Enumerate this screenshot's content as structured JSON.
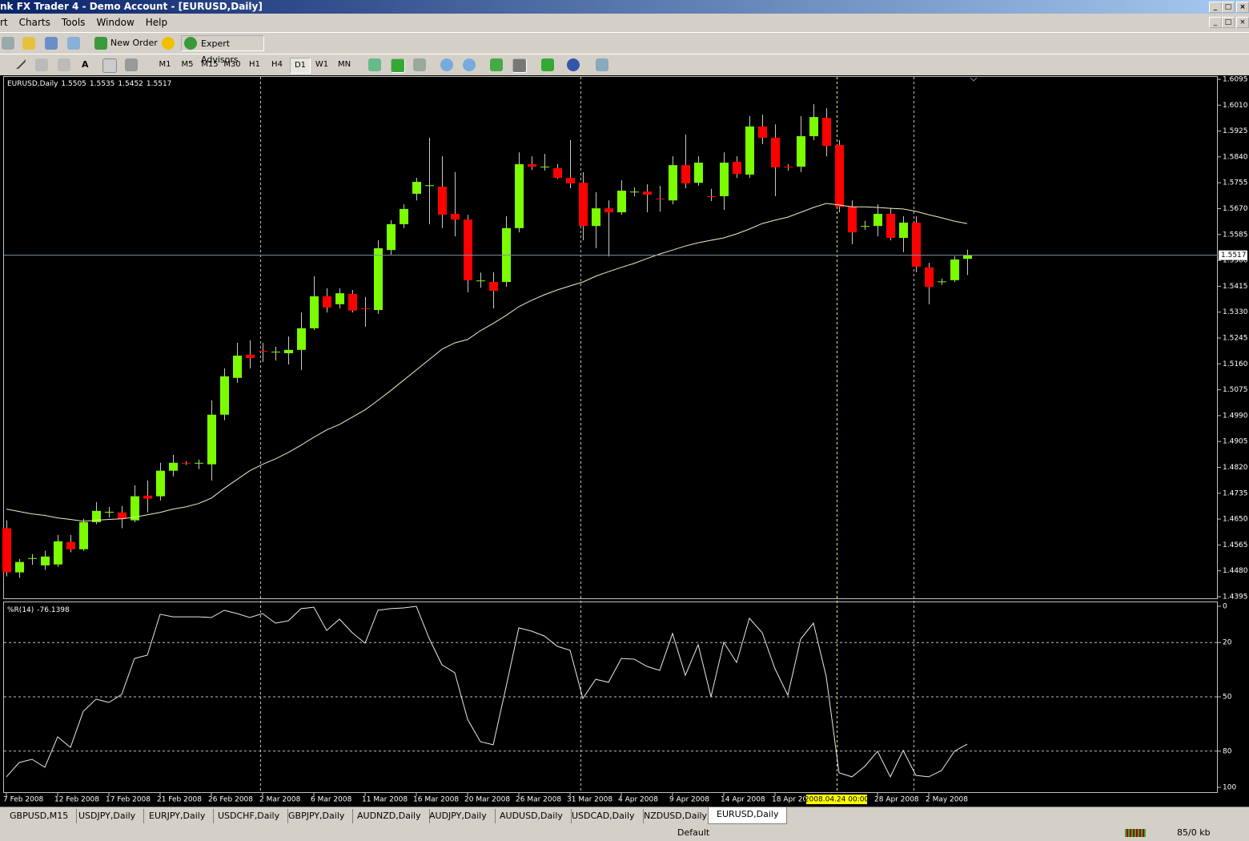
{
  "window": {
    "title": "nk FX Trader 4 - Demo Account - [EURUSD,Daily]"
  },
  "menu": [
    "rt",
    "Charts",
    "Tools",
    "Window",
    "Help"
  ],
  "toolbar": {
    "new_order": "New Order",
    "expert_advisors": "Expert Advisors",
    "timeframes": [
      "M1",
      "M5",
      "M15",
      "M30",
      "H1",
      "H4",
      "D1",
      "W1",
      "MN"
    ],
    "active_timeframe": "D1"
  },
  "tabs": [
    "GBPUSD,M15",
    "USDJPY,Daily",
    "EURJPY,Daily",
    "USDCHF,Daily",
    "GBPJPY,Daily",
    "AUDNZD,Daily",
    "AUDJPY,Daily",
    "AUDUSD,Daily",
    "USDCAD,Daily",
    "NZDUSD,Daily",
    "EURUSD,Daily"
  ],
  "active_tab": "EURUSD,Daily",
  "status": {
    "profile": "Default",
    "traffic": "85/0 kb"
  },
  "chart_data": [
    {
      "type": "candlestick",
      "title": "EURUSD,Daily",
      "cursor_label": "2008.04.24 00:00",
      "up_color": "#7cfc00",
      "down_color": "#ff0000",
      "wick_color": "#c8c8c8",
      "ma_color": "#f0ecc8",
      "open": [
        1.462,
        1.4475,
        1.452,
        1.4498,
        1.4501,
        1.4575,
        1.4551,
        1.464,
        1.4672,
        1.4672,
        1.4646,
        1.4727,
        1.4725,
        1.4809,
        1.4835,
        1.4833,
        1.483,
        1.4993,
        1.5114,
        1.519,
        1.5203,
        1.5198,
        1.5195,
        1.5206,
        1.5277,
        1.5382,
        1.5356,
        1.539,
        1.5343,
        1.5337,
        1.5534,
        1.5619,
        1.5719,
        1.5745,
        1.5742,
        1.5653,
        1.5634,
        1.5432,
        1.5429,
        1.5429,
        1.5606,
        1.5816,
        1.5806,
        1.5803,
        1.5771,
        1.5755,
        1.5613,
        1.5671,
        1.5658,
        1.5724,
        1.5726,
        1.5703,
        1.5697,
        1.5813,
        1.5755,
        1.5711,
        1.5711,
        1.5824,
        1.5782,
        1.594,
        1.5903,
        1.5808,
        1.5808,
        1.5908,
        1.5968,
        1.5879,
        1.5676,
        1.5611,
        1.5613,
        1.5653,
        1.5574,
        1.5624,
        1.5477,
        1.5429,
        1.5435,
        1.5505
      ],
      "high": [
        1.4646,
        1.4519,
        1.4535,
        1.4546,
        1.4598,
        1.4598,
        1.4651,
        1.4706,
        1.469,
        1.4693,
        1.4761,
        1.4777,
        1.4835,
        1.4861,
        1.484,
        1.4846,
        1.504,
        1.5145,
        1.5229,
        1.5237,
        1.5229,
        1.5216,
        1.525,
        1.5329,
        1.5448,
        1.5408,
        1.5408,
        1.5403,
        1.538,
        1.5566,
        1.5632,
        1.5684,
        1.5771,
        1.5903,
        1.5842,
        1.579,
        1.565,
        1.546,
        1.5461,
        1.5645,
        1.5855,
        1.5842,
        1.585,
        1.5816,
        1.5895,
        1.579,
        1.5724,
        1.5697,
        1.5763,
        1.574,
        1.575,
        1.5745,
        1.5842,
        1.5913,
        1.5842,
        1.5735,
        1.5855,
        1.5842,
        1.5974,
        1.5979,
        1.5947,
        1.5816,
        1.5974,
        1.6013,
        1.6,
        1.5895,
        1.5697,
        1.563,
        1.5684,
        1.5671,
        1.5645,
        1.5645,
        1.5492,
        1.544,
        1.5514,
        1.5535
      ],
      "low": [
        1.4462,
        1.4457,
        1.45,
        1.4483,
        1.4493,
        1.4541,
        1.4546,
        1.4633,
        1.4655,
        1.462,
        1.464,
        1.4672,
        1.4711,
        1.479,
        1.4828,
        1.4814,
        1.4777,
        1.4975,
        1.5098,
        1.5145,
        1.5166,
        1.5171,
        1.5158,
        1.514,
        1.5271,
        1.5329,
        1.5342,
        1.5329,
        1.5282,
        1.5324,
        1.5519,
        1.5606,
        1.5697,
        1.5619,
        1.5606,
        1.5579,
        1.5395,
        1.541,
        1.5342,
        1.5413,
        1.5592,
        1.5797,
        1.5795,
        1.5768,
        1.5737,
        1.5566,
        1.554,
        1.5513,
        1.565,
        1.571,
        1.5658,
        1.566,
        1.5684,
        1.5737,
        1.5745,
        1.5695,
        1.5666,
        1.5771,
        1.5771,
        1.5882,
        1.5711,
        1.5795,
        1.579,
        1.5895,
        1.5842,
        1.5658,
        1.5553,
        1.56,
        1.5579,
        1.5566,
        1.5527,
        1.5461,
        1.5356,
        1.542,
        1.5429,
        1.5452
      ],
      "close": [
        1.4475,
        1.4509,
        1.4522,
        1.4527,
        1.4577,
        1.4551,
        1.464,
        1.4677,
        1.4674,
        1.4651,
        1.4725,
        1.4717,
        1.4809,
        1.4835,
        1.4833,
        1.4835,
        1.4993,
        1.5119,
        1.5187,
        1.5179,
        1.5201,
        1.52,
        1.5206,
        1.5277,
        1.5382,
        1.5345,
        1.5392,
        1.5335,
        1.5341,
        1.554,
        1.5619,
        1.5669,
        1.5758,
        1.5747,
        1.565,
        1.5634,
        1.5435,
        1.5434,
        1.54,
        1.5606,
        1.5816,
        1.5808,
        1.5808,
        1.5771,
        1.5753,
        1.5613,
        1.5671,
        1.5658,
        1.5729,
        1.5726,
        1.5716,
        1.5701,
        1.5813,
        1.5753,
        1.5821,
        1.5709,
        1.5821,
        1.5784,
        1.594,
        1.5903,
        1.5806,
        1.5806,
        1.5908,
        1.5971,
        1.5876,
        1.5676,
        1.5592,
        1.5613,
        1.5653,
        1.5574,
        1.5624,
        1.5479,
        1.5413,
        1.5431,
        1.5503,
        1.5517
      ],
      "ma": [
        1.4683,
        1.4675,
        1.4667,
        1.4662,
        1.4654,
        1.4649,
        1.4643,
        1.4646,
        1.4649,
        1.4651,
        1.4656,
        1.4664,
        1.4672,
        1.4683,
        1.469,
        1.4701,
        1.4719,
        1.4751,
        1.478,
        1.4809,
        1.483,
        1.4848,
        1.4869,
        1.4893,
        1.4919,
        1.4943,
        1.4961,
        1.4985,
        1.5009,
        1.504,
        1.5072,
        1.5106,
        1.514,
        1.5174,
        1.5208,
        1.5229,
        1.524,
        1.5269,
        1.5293,
        1.5319,
        1.5348,
        1.5369,
        1.5387,
        1.5403,
        1.5416,
        1.5429,
        1.5448,
        1.5463,
        1.5477,
        1.549,
        1.5506,
        1.5521,
        1.5534,
        1.5547,
        1.5558,
        1.5566,
        1.5574,
        1.5587,
        1.5603,
        1.5621,
        1.5632,
        1.5642,
        1.5658,
        1.5674,
        1.5687,
        1.5682,
        1.5676,
        1.5676,
        1.5674,
        1.5671,
        1.5669,
        1.5661,
        1.565,
        1.564,
        1.5629,
        1.5621
      ],
      "ylim": [
        1.4395,
        1.6095
      ],
      "yticks": [
        1.6095,
        {
          "value": 1.601,
          "label": "1.6010"
        },
        1.5925,
        {
          "value": 1.584,
          "label": "1.5840"
        },
        1.5755,
        {
          "value": 1.567,
          "label": "1.5670"
        },
        1.5585,
        {
          "value": 1.55,
          "label": "1.5500"
        },
        1.5415,
        {
          "value": 1.533,
          "label": "1.5330"
        },
        1.5245,
        {
          "value": 1.516,
          "label": "1.5160"
        },
        1.5075,
        {
          "value": 1.499,
          "label": "1.4990"
        },
        1.4905,
        {
          "value": 1.482,
          "label": "1.4820"
        },
        1.4735,
        {
          "value": 1.465,
          "label": "1.4650"
        },
        1.4565,
        {
          "value": 1.448,
          "label": "1.4480"
        },
        1.4395
      ],
      "xticks": [
        {
          "value": 0,
          "label": "7 Feb 2008"
        },
        {
          "value": 4,
          "label": "12 Feb 2008"
        },
        {
          "value": 8,
          "label": "17 Feb 2008"
        },
        {
          "value": 12,
          "label": "21 Feb 2008"
        },
        {
          "value": 16,
          "label": "26 Feb 2008"
        },
        {
          "value": 20,
          "label": "2 Mar 2008"
        },
        {
          "value": 24,
          "label": "6 Mar 2008"
        },
        {
          "value": 28,
          "label": "11 Mar 2008"
        },
        {
          "value": 32,
          "label": "16 Mar 2008"
        },
        {
          "value": 36,
          "label": "20 Mar 2008"
        },
        {
          "value": 40,
          "label": "26 Mar 2008"
        },
        {
          "value": 44,
          "label": "31 Mar 2008"
        },
        {
          "value": 48,
          "label": "4 Apr 2008"
        },
        {
          "value": 52,
          "label": "9 Apr 2008"
        },
        {
          "value": 56,
          "label": "14 Apr 2008"
        },
        {
          "value": 60,
          "label": "18 Apr 2008"
        },
        {
          "value": 68,
          "label": "28 Apr 2008"
        },
        {
          "value": 72,
          "label": "2 May 2008"
        }
      ]
    },
    {
      "type": "line",
      "title": "%R(14)",
      "color": "#e8e8e8",
      "values": [
        -94.2,
        -86.3,
        -84.5,
        -88.9,
        -72.1,
        -77.9,
        -58.0,
        -51.3,
        -53.1,
        -48.7,
        -28.8,
        -27.0,
        -4.4,
        -5.8,
        -5.8,
        -5.8,
        -6.2,
        -2.2,
        -4.0,
        -6.2,
        -4.0,
        -9.3,
        -8.0,
        -1.3,
        -0.5,
        -13.3,
        -7.1,
        -14.6,
        -20.4,
        -2.2,
        -1.3,
        -0.9,
        0,
        -17.7,
        -32.3,
        -36.7,
        -62.4,
        -74.8,
        -76.5,
        -44.7,
        -11.9,
        -13.7,
        -16.4,
        -22.1,
        -24.3,
        -50.9,
        -40.3,
        -42.0,
        -28.8,
        -29.2,
        -33.2,
        -35.4,
        -15.0,
        -38.1,
        -21.2,
        -50.0,
        -19.9,
        -31.0,
        -6.6,
        -14.6,
        -34.5,
        -49.1,
        -18.1,
        -9.3,
        -38.9,
        -92.0,
        -94.2,
        -88.5,
        -80.1,
        -94.2,
        -79.6,
        -93.4,
        -94.2,
        -90.7,
        -80.1,
        -76.1398
      ],
      "ylim": [
        -100,
        0
      ],
      "yticks": [
        0,
        {
          "value": -20,
          "label": "20"
        },
        {
          "value": -50,
          "label": "50"
        },
        {
          "value": -80,
          "label": "80"
        },
        {
          "value": -100,
          "label": "100"
        }
      ],
      "levels": [
        -20,
        -50,
        -80
      ]
    }
  ]
}
